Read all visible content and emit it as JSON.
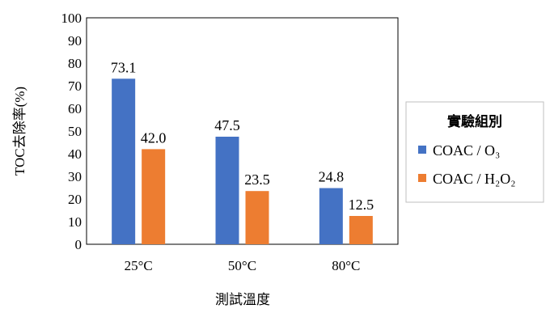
{
  "chart_data": {
    "type": "bar",
    "categories": [
      "25°C",
      "50°C",
      "80°C"
    ],
    "series": [
      {
        "name": "COAC / O₃",
        "values": [
          73.1,
          47.5,
          24.8
        ],
        "color": "#4472C4"
      },
      {
        "name": "COAC / H₂O₂",
        "values": [
          42.0,
          23.5,
          12.5
        ],
        "color": "#ED7D31"
      }
    ],
    "data_labels": [
      [
        "73.1",
        "47.5",
        "24.8"
      ],
      [
        "42.0",
        "23.5",
        "12.5"
      ]
    ],
    "xlabel": "測試溫度",
    "ylabel": "TOC去除率(%)",
    "ylim": [
      0,
      100
    ],
    "yticks": [
      "0",
      "10",
      "20",
      "30",
      "40",
      "50",
      "60",
      "70",
      "80",
      "90",
      "100"
    ],
    "grid": false,
    "legend": {
      "title": "實驗組別",
      "placement": "right"
    }
  }
}
